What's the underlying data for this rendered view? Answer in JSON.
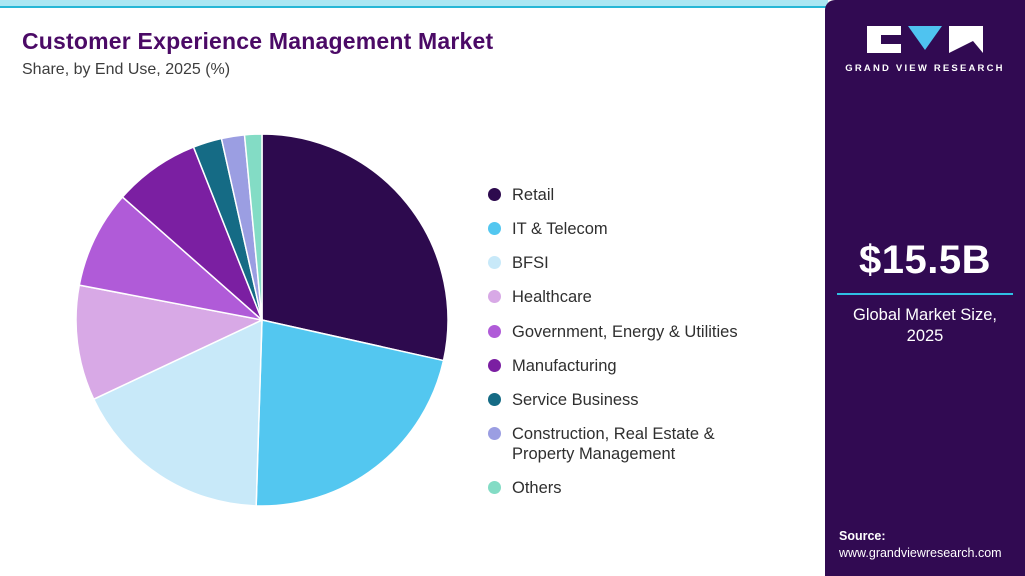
{
  "header": {
    "title": "Customer Experience Management Market",
    "subtitle": "Share, by End Use, 2025 (%)"
  },
  "sidebar": {
    "brand_name": "GRAND VIEW RESEARCH",
    "market_size_value": "$15.5B",
    "market_size_label": "Global Market Size, 2025",
    "source_label": "Source:",
    "source_url": "www.grandviewresearch.com"
  },
  "colors": {
    "accent_cyan": "#27B7D6",
    "strip_light_cyan": "#ABE7F3",
    "sidebar_purple": "#310A52",
    "title_purple": "#4B0A66",
    "logo_triangle_cyan": "#4FC3F0"
  },
  "chart_data": {
    "type": "pie",
    "title": "Customer Experience Management Market Share, by End Use, 2025 (%)",
    "legend_position": "right",
    "start_angle_deg": -90,
    "direction": "clockwise",
    "series": [
      {
        "id": "retail",
        "label": "Retail",
        "value": 28.5,
        "color": "#2D0A4E"
      },
      {
        "id": "it-telecom",
        "label": "IT & Telecom",
        "value": 22.0,
        "color": "#53C7F0"
      },
      {
        "id": "bfsi",
        "label": "BFSI",
        "value": 17.5,
        "color": "#C8E9F9"
      },
      {
        "id": "healthcare",
        "label": "Healthcare",
        "value": 10.0,
        "color": "#D8A9E6"
      },
      {
        "id": "government-energy-utilities",
        "label": "Government, Energy & Utilities",
        "value": 8.5,
        "color": "#B05BD8"
      },
      {
        "id": "manufacturing",
        "label": "Manufacturing",
        "value": 7.5,
        "color": "#7B1FA2"
      },
      {
        "id": "service-business",
        "label": "Service Business",
        "value": 2.5,
        "color": "#156B85"
      },
      {
        "id": "construction-real-estate",
        "label": "Construction, Real Estate & Property Management",
        "value": 2.0,
        "color": "#9B9EE2"
      },
      {
        "id": "others",
        "label": "Others",
        "value": 1.5,
        "color": "#83DCC5"
      }
    ]
  }
}
